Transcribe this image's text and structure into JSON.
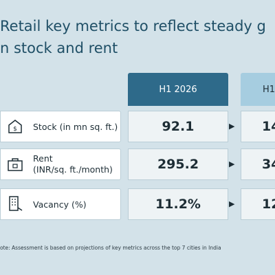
{
  "header": {
    "title_line1": "Retail key metrics to reflect steady g",
    "title_line2": "n stock and rent"
  },
  "table": {
    "columns": [
      "H1 2026",
      "H1"
    ],
    "rows": [
      {
        "label": "Stock (in mn sq. ft.)",
        "values": [
          92.1,
          14
        ]
      },
      {
        "label": "Rent\n(INR/sq. ft./month)",
        "values": [
          295.2,
          34
        ]
      },
      {
        "label": "Vacancy (%)",
        "values": [
          "11.2%",
          12
        ]
      }
    ]
  },
  "note": "ote: Assessment is based on projections of key metrics across the top 7 cities in India"
}
